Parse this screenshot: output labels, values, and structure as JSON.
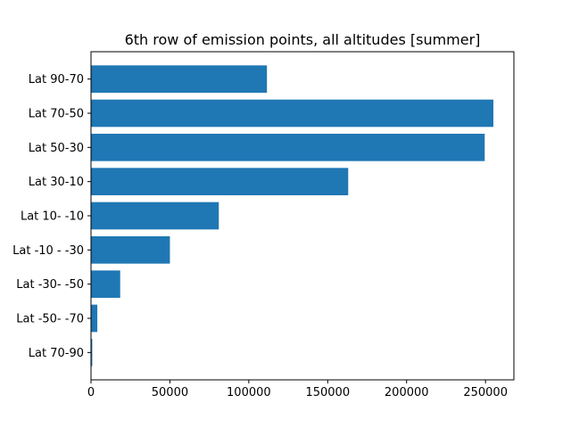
{
  "chart_data": {
    "type": "bar",
    "orientation": "horizontal",
    "title": "6th row of emission points, all altitudes [summer]",
    "xlabel": "",
    "ylabel": "",
    "categories": [
      "Lat 90-70",
      "Lat 70-50",
      "Lat 50-30",
      "Lat 30-10",
      "Lat 10- -10",
      "Lat -10 - -30",
      "Lat -30- -50",
      "Lat -50- -70",
      "Lat 70-90"
    ],
    "values": [
      111500,
      255000,
      249500,
      163000,
      81000,
      50000,
      18500,
      4000,
      800
    ],
    "xlim": [
      0,
      268000
    ],
    "xticks": [
      0,
      50000,
      100000,
      150000,
      200000,
      250000
    ],
    "xtick_labels": [
      "0",
      "50000",
      "100000",
      "150000",
      "200000",
      "250000"
    ],
    "bar_color": "#1f77b4",
    "grid": false,
    "legend": "none"
  }
}
